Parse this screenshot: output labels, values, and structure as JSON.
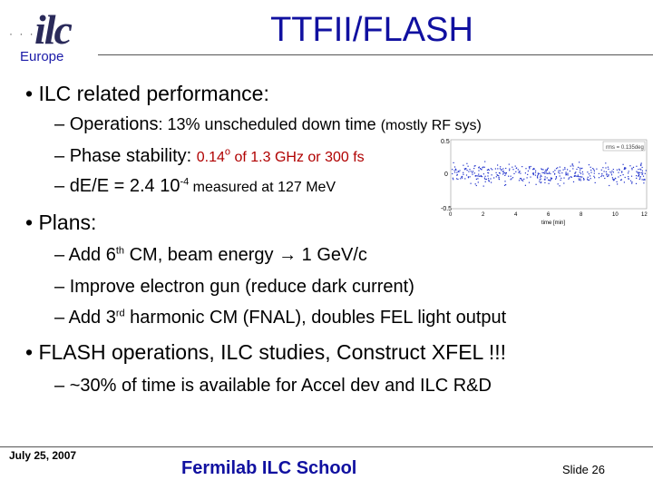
{
  "logo": {
    "mark": "ilc",
    "sub": "Europe"
  },
  "title": "TTFII/FLASH",
  "bullets": [
    {
      "text": "ILC related performance:",
      "items": [
        {
          "a": "Operations",
          "b": ": 13% unscheduled down time ",
          "c": "(mostly RF sys)"
        },
        {
          "a": "Phase stability: ",
          "b": "0.14",
          "sup": "o",
          "c": " of 1.3 GHz or 300 fs"
        },
        {
          "a": "dE/E = 2.4 10",
          "sup": "-4",
          "b": " measured at 127 MeV"
        }
      ]
    },
    {
      "text": "Plans:",
      "items": [
        {
          "a": "Add 6",
          "sup": "th",
          "b": " CM, beam energy ",
          "arrow": "→",
          "c": " 1 GeV/c"
        },
        {
          "a": "Improve electron gun (reduce dark current)"
        },
        {
          "a": "Add 3",
          "sup": "rd",
          "b": " harmonic CM (FNAL), doubles FEL light output"
        }
      ]
    },
    {
      "text": "FLASH operations, ILC studies, Construct XFEL !!!",
      "items": [
        {
          "a": "~30% of time is available for Accel dev and ILC R&D"
        }
      ]
    }
  ],
  "footer": {
    "date": "July 25, 2007",
    "school": "Fermilab ILC School",
    "slide": "Slide 26"
  },
  "plot": {
    "yticks": [
      "0.5",
      "0",
      "-0.5"
    ],
    "xticks": [
      "0",
      "2",
      "4",
      "6",
      "8",
      "10",
      "12"
    ],
    "xlabel": "time [min]",
    "legend": "rms = 0.135deg",
    "color": "#2233cc"
  }
}
